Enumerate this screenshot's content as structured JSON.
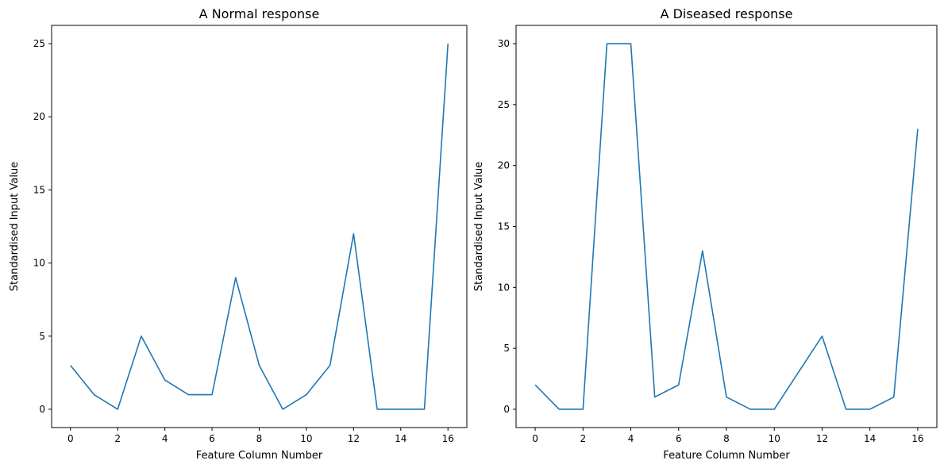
{
  "chart_data": [
    {
      "type": "line",
      "title": "A Normal response",
      "xlabel": "Feature Column Number",
      "ylabel": "Standardised Input Value",
      "x": [
        0,
        1,
        2,
        3,
        4,
        5,
        6,
        7,
        8,
        9,
        10,
        11,
        12,
        13,
        14,
        15,
        16
      ],
      "series": [
        {
          "values": [
            3,
            1,
            0,
            5,
            2,
            1,
            1,
            9,
            3,
            0,
            1,
            3,
            12,
            0,
            0,
            0,
            25
          ]
        }
      ],
      "xlim": [
        -0.8,
        16.8
      ],
      "ylim": [
        -1.25,
        26.25
      ],
      "xticks": [
        0,
        2,
        4,
        6,
        8,
        10,
        12,
        14,
        16
      ],
      "yticks": [
        0,
        5,
        10,
        15,
        20,
        25
      ],
      "grid": false,
      "color": "#1f77b4"
    },
    {
      "type": "line",
      "title": "A Diseased response",
      "xlabel": "Feature Column Number",
      "ylabel": "Standardised Input Value",
      "x": [
        0,
        1,
        2,
        3,
        4,
        5,
        6,
        7,
        8,
        9,
        10,
        11,
        12,
        13,
        14,
        15,
        16
      ],
      "series": [
        {
          "values": [
            2,
            0,
            0,
            30,
            30,
            1,
            2,
            13,
            1,
            0,
            0,
            3,
            6,
            0,
            0,
            1,
            23
          ]
        }
      ],
      "xlim": [
        -0.8,
        16.8
      ],
      "ylim": [
        -1.5,
        31.5
      ],
      "xticks": [
        0,
        2,
        4,
        6,
        8,
        10,
        12,
        14,
        16
      ],
      "yticks": [
        0,
        5,
        10,
        15,
        20,
        25,
        30
      ],
      "grid": false,
      "color": "#1f77b4"
    }
  ]
}
